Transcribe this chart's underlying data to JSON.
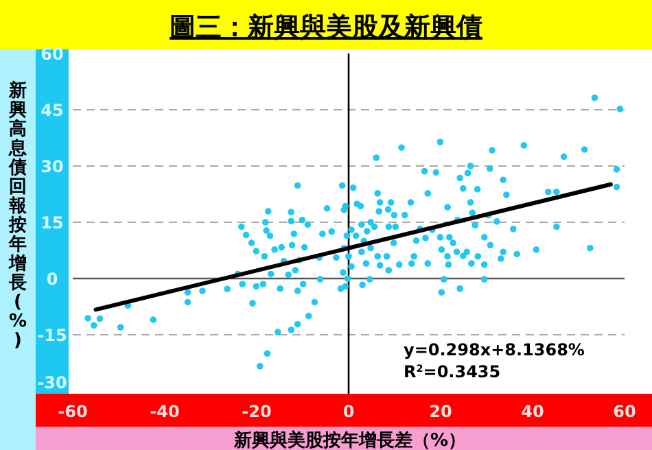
{
  "chart_data": {
    "type": "scatter",
    "title": "圖三：新興與美股及新興債",
    "xlabel": "新興與美股按年增長差（%）",
    "ylabel": "新興高息債回報按年增長(%)",
    "xlim": [
      -60,
      60
    ],
    "ylim": [
      -30,
      60
    ],
    "xticks": [
      -60,
      -40,
      -20,
      0,
      20,
      40,
      60
    ],
    "yticks": [
      -30,
      -15,
      0,
      15,
      30,
      45,
      60
    ],
    "grid": "y",
    "marker": "circle",
    "ref_lines": [
      {
        "axis": "x",
        "value": 0,
        "color": "#000000"
      },
      {
        "axis": "y",
        "value": 0,
        "color": "#555555"
      }
    ],
    "annotations": [
      "y=0.298x+8.1368%",
      "R$^{2}$=0.3435"
    ],
    "series": [
      {
        "type": "scatter",
        "color": "#22c8f0",
        "x": [
          -56.7,
          -55.4,
          -54.1,
          -49.6,
          -48.0,
          -42.5,
          -35.0,
          -35.0,
          -31.8,
          -26.4,
          -24.1,
          -23.3,
          -23.1,
          -22.3,
          -21.1,
          -20.9,
          -20.1,
          -20.1,
          -19.3,
          -18.6,
          -18.3,
          -18.1,
          -17.9,
          -17.7,
          -17.5,
          -17.1,
          -16.9,
          -16.1,
          -15.4,
          -14.9,
          -14.6,
          -14.1,
          -13.1,
          -12.5,
          -12.5,
          -12.5,
          -12.3,
          -11.9,
          -11.6,
          -11.1,
          -11.1,
          -11.1,
          -10.7,
          -10.1,
          -9.9,
          -9.6,
          -8.9,
          -8.7,
          -7.4,
          -6.4,
          -6.2,
          -5.7,
          -4.7,
          -3.7,
          -2.7,
          -1.7,
          -1.4,
          -1.2,
          -1.0,
          -0.4,
          53.5,
          59.0,
          58.3,
          58.3,
          6.0,
          11.5,
          19.9,
          31.2,
          38.1,
          46.8,
          51.3,
          16.5,
          19.0,
          24.2,
          25.9,
          26.5,
          24.9,
          28.0,
          30.7,
          33.6,
          34.3,
          43.4,
          45.2,
          45.2,
          52.5,
          40.8,
          35.8,
          36.6,
          33.6,
          32.2,
          30.4,
          29.5,
          30.8,
          29.5,
          33.1,
          28.1,
          26.7,
          25.7,
          24.9,
          23.5,
          22.7,
          21.9,
          23.7,
          26.5,
          26.9,
          27.5,
          21.7,
          21.5,
          20.2,
          19.9,
          21.5,
          17.2,
          13.5,
          12.2,
          9.9,
          8.6,
          6.8,
          6.3,
          9.2,
          6.6,
          5.6,
          4.8,
          4.0,
          2.8,
          2.6,
          1.8,
          1.0,
          1.6,
          0.6,
          3.3,
          4.8,
          3.8,
          2.8,
          6.3,
          6.8,
          8.3,
          8.7,
          9.8,
          10.2,
          8.7,
          11.0,
          13.7,
          14.2,
          14.7,
          15.5,
          16.7,
          17.2,
          18.2,
          4.6,
          3.0,
          -0.2,
          -0.7,
          20.7,
          20.2,
          24.2,
          29.5,
          -0.7,
          -1.0,
          0.0,
          0.6
        ],
        "values": [
          -10.6,
          -12.5,
          -10.7,
          -13.0,
          -7.2,
          -11.0,
          -3.7,
          -6.3,
          -3.3,
          -2.8,
          1.2,
          13.8,
          -1.5,
          11.6,
          9.5,
          -6.6,
          7.3,
          -2.1,
          -23.4,
          -1.5,
          5.9,
          15.0,
          12.8,
          -20.0,
          17.9,
          11.4,
          1.2,
          7.7,
          -14.3,
          -2.7,
          8.3,
          4.6,
          1.0,
          17.7,
          15.3,
          -13.7,
          8.9,
          11.9,
          2.2,
          24.8,
          -3.3,
          -12.2,
          4.9,
          15.6,
          -1.5,
          8.3,
          14.4,
          -10.0,
          -6.3,
          5.6,
          -0.2,
          11.9,
          18.7,
          12.5,
          5.6,
          -2.7,
          24.8,
          1.6,
          18.3,
          11.4,
          48.2,
          45.2,
          29.1,
          24.4,
          32.2,
          34.9,
          36.4,
          34.2,
          35.5,
          32.5,
          34.4,
          28.6,
          28.3,
          26.8,
          28.1,
          30.0,
          24.0,
          23.8,
          29.3,
          26.3,
          22.3,
          23.1,
          23.1,
          13.8,
          8.1,
          7.7,
          13.2,
          6.5,
          7.1,
          15.2,
          16.9,
          11.0,
          8.9,
          3.7,
          5.3,
          5.9,
          4.0,
          7.1,
          6.0,
          7.1,
          9.5,
          11.0,
          15.6,
          20.3,
          17.5,
          14.2,
          3.7,
          5.9,
          7.7,
          11.0,
          19.0,
          22.7,
          20.3,
          16.9,
          16.9,
          18.4,
          20.3,
          22.7,
          20.3,
          17.9,
          13.8,
          15.0,
          12.6,
          14.4,
          19.3,
          19.9,
          24.2,
          11.4,
          13.0,
          10.0,
          8.1,
          4.0,
          7.1,
          5.9,
          3.5,
          5.9,
          2.2,
          9.5,
          13.8,
          13.8,
          3.7,
          4.0,
          5.9,
          10.1,
          13.2,
          10.8,
          4.0,
          13.0,
          -0.2,
          -1.7,
          0.0,
          -2.1,
          -0.2,
          -3.7,
          -2.7,
          -0.2,
          19.3,
          8.1,
          5.9,
          3.2
        ]
      },
      {
        "type": "line",
        "color": "#000000",
        "line_style": "solid",
        "marker": "none",
        "x": [
          -55,
          57
        ],
        "values": [
          -8.3,
          25.1
        ]
      }
    ]
  }
}
